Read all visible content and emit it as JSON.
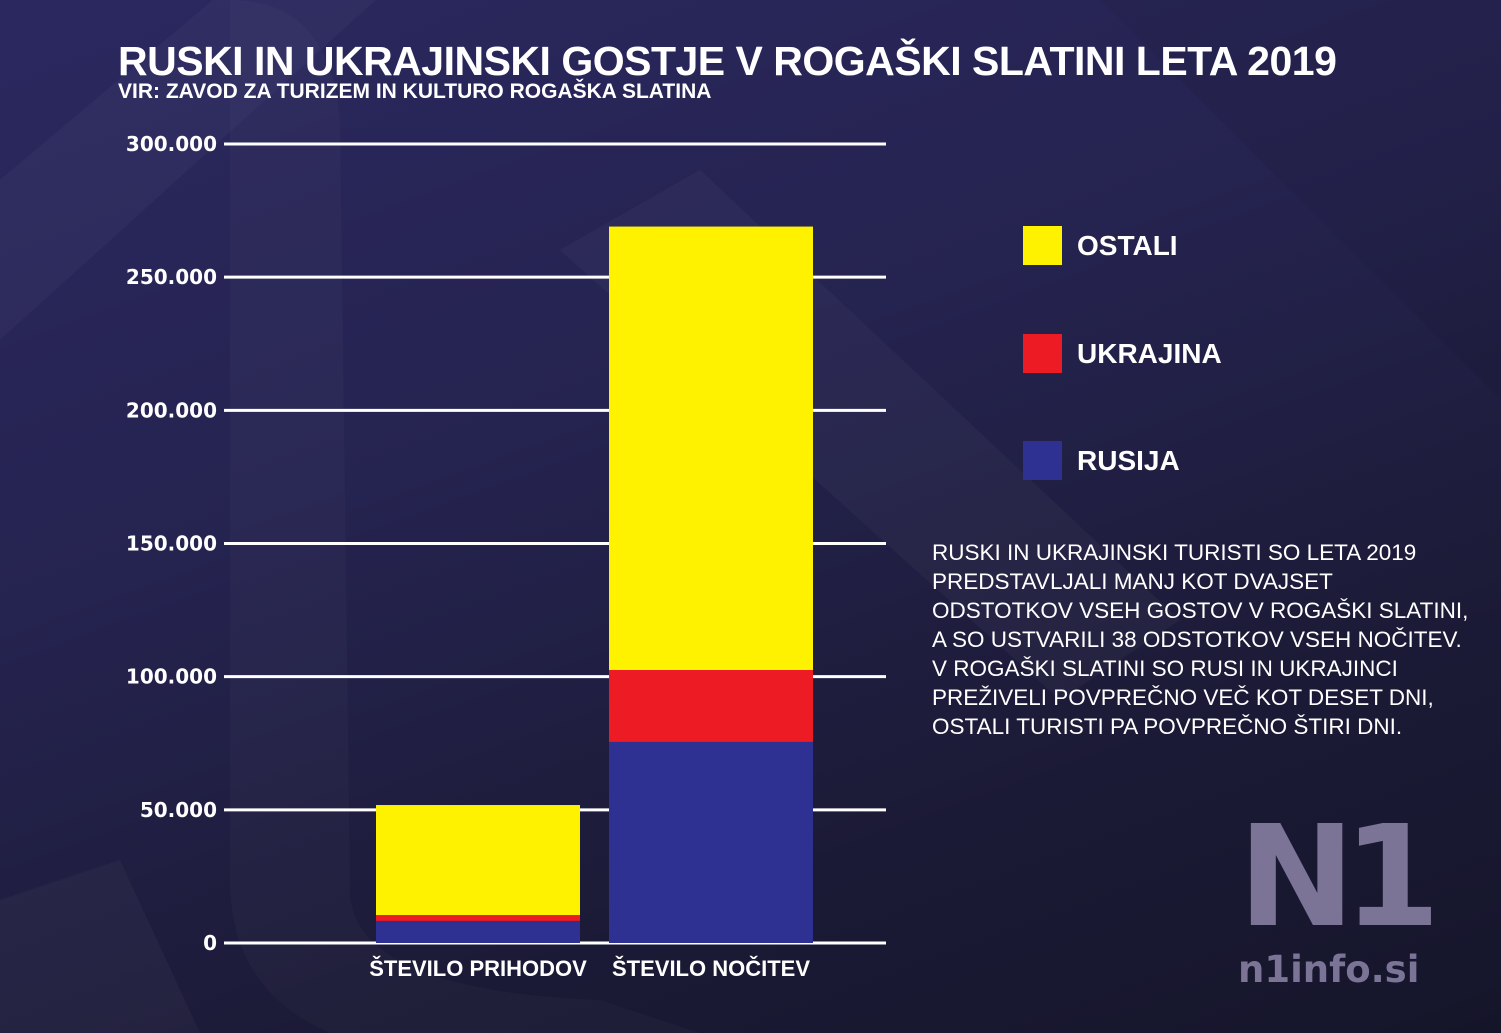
{
  "colors": {
    "ostali": "#fff200",
    "ukrajina": "#ed1c24",
    "rusija": "#2e3192",
    "gridline": "#ffffff",
    "logo": "#7b7496"
  },
  "header": {
    "title": "RUSKI IN UKRAJINSKI GOSTJE V ROGAŠKI SLATINI LETA 2019",
    "subtitle": "VIR: ZAVOD ZA TURIZEM IN KULTURO ROGAŠKA SLATINA"
  },
  "legend": [
    {
      "label": "OSTALI",
      "color_key": "ostali"
    },
    {
      "label": "UKRAJINA",
      "color_key": "ukrajina"
    },
    {
      "label": "RUSIJA",
      "color_key": "rusija"
    }
  ],
  "note": {
    "lines": [
      "RUSKI IN UKRAJINSKI TURISTI SO LETA 2019",
      "PREDSTAVLJALI MANJ KOT DVAJSET",
      "ODSTOTKOV VSEH GOSTOV V ROGAŠKI SLATINI,",
      "A SO USTVARILI 38 ODSTOTKOV VSEH NOČITEV.",
      "V ROGAŠKI SLATINI SO RUSI IN UKRAJINCI",
      "PREŽIVELI POVPREČNO VEČ KOT DESET DNI,",
      "OSTALI TURISTI PA POVPREČNO ŠTIRI DNI."
    ]
  },
  "logo": {
    "mark": "N1",
    "url": "n1info.si"
  },
  "chart_data": {
    "type": "bar",
    "stacked": true,
    "title": "RUSKI IN UKRAJINSKI GOSTJE V ROGAŠKI SLATINI LETA 2019",
    "subtitle": "VIR: ZAVOD ZA TURIZEM IN KULTURO ROGAŠKA SLATINA",
    "xlabel": "",
    "ylabel": "",
    "categories": [
      "ŠTEVILO PRIHODOV",
      "ŠTEVILO NOČITEV"
    ],
    "series": [
      {
        "name": "RUSIJA",
        "color_key": "rusija",
        "values": [
          8300,
          75500
        ]
      },
      {
        "name": "UKRAJINA",
        "color_key": "ukrajina",
        "values": [
          2200,
          27000
        ]
      },
      {
        "name": "OSTALI",
        "color_key": "ostali",
        "values": [
          41300,
          166500
        ]
      }
    ],
    "ylim": [
      0,
      300000
    ],
    "yticks": [
      0,
      50000,
      100000,
      150000,
      200000,
      250000,
      300000
    ],
    "ytick_labels": [
      "0",
      "50.000",
      "100.000",
      "150.000",
      "200.000",
      "250.000",
      "300.000"
    ],
    "grid": true,
    "legend_position": "right"
  }
}
